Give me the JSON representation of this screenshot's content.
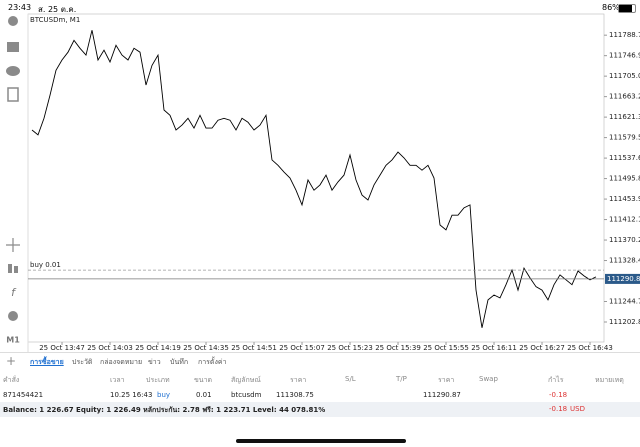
{
  "status_bar": {
    "time": "23:43",
    "date": "ส. 25 ต.ค.",
    "battery": "86%"
  },
  "chart_data": {
    "type": "line",
    "title": "BTCUSDm, M1",
    "timeframe": "M1",
    "color": "#000000",
    "values": [
      111595,
      111585,
      111619,
      111666,
      111717,
      111738,
      111754,
      111778,
      111762,
      111748,
      111799,
      111738,
      111758,
      111734,
      111768,
      111748,
      111738,
      111762,
      111754,
      111687,
      111727,
      111748,
      111636,
      111625,
      111595,
      111605,
      111619,
      111599,
      111625,
      111599,
      111599,
      111615,
      111619,
      111615,
      111595,
      111619,
      111611,
      111595,
      111605,
      111625,
      111534,
      111523,
      111509,
      111497,
      111472,
      111442,
      111493,
      111472,
      111483,
      111503,
      111472,
      111489,
      111503,
      111544,
      111493,
      111462,
      111452,
      111483,
      111503,
      111523,
      111534,
      111550,
      111538,
      111523,
      111523,
      111513,
      111523,
      111497,
      111401,
      111391,
      111421,
      111421,
      111436,
      111442,
      111268,
      111191,
      111248,
      111258,
      111252,
      111279,
      111309,
      111268,
      111313,
      111293,
      111275,
      111268,
      111248,
      111279,
      111299,
      111289,
      111279,
      111307,
      111297,
      111289,
      111295
    ],
    "xlim": [
      -0.67,
      95.33
    ],
    "xticks": [
      {
        "value": 5,
        "label": "25 Oct 13:47"
      },
      {
        "value": 13,
        "label": "25 Oct 14:03"
      },
      {
        "value": 21,
        "label": "25 Oct 14:19"
      },
      {
        "value": 29,
        "label": "25 Oct 14:35"
      },
      {
        "value": 37,
        "label": "25 Oct 14:51"
      },
      {
        "value": 45,
        "label": "25 Oct 15:07"
      },
      {
        "value": 53,
        "label": "25 Oct 15:23"
      },
      {
        "value": 61,
        "label": "25 Oct 15:39"
      },
      {
        "value": 69,
        "label": "25 Oct 15:55"
      },
      {
        "value": 77,
        "label": "25 Oct 16:11"
      },
      {
        "value": 85,
        "label": "25 Oct 16:27"
      },
      {
        "value": 93,
        "label": "25 Oct 16:43"
      }
    ],
    "ylim": [
      111162,
      111832
    ],
    "yticks": [
      {
        "value": 111788.75,
        "label": "111788.75"
      },
      {
        "value": 111746.9,
        "label": "111746.90"
      },
      {
        "value": 111705.05,
        "label": "111705.05"
      },
      {
        "value": 111663.2,
        "label": "111663.20"
      },
      {
        "value": 111621.35,
        "label": "111621.35"
      },
      {
        "value": 111579.5,
        "label": "111579.50"
      },
      {
        "value": 111537.65,
        "label": "111537.65"
      },
      {
        "value": 111495.8,
        "label": "111495.80"
      },
      {
        "value": 111453.95,
        "label": "111453.95"
      },
      {
        "value": 111412.1,
        "label": "111412.10"
      },
      {
        "value": 111370.25,
        "label": "111370.25"
      },
      {
        "value": 111328.4,
        "label": "111328.40"
      },
      {
        "value": 111244.7,
        "label": "111244.70"
      },
      {
        "value": 111202.85,
        "label": "111202.85"
      }
    ],
    "order_line": {
      "label": "buy 0.01",
      "value": 111308.75
    },
    "bid": 111290.87
  },
  "tabs": [
    "การซื้อขาย",
    "ประวัติ",
    "กล่องจดหมาย",
    "ข่าว",
    "บันทึก",
    "การตั้งค่า"
  ],
  "table": {
    "header": [
      "คำสั่ง",
      "เวลา",
      "ประเภท",
      "ขนาด",
      "สัญลักษณ์",
      "ราคา",
      "S/L",
      "T/P",
      "ราคา",
      "Swap",
      "กำไร",
      "หมายเหตุ"
    ],
    "row": {
      "order": "871454421",
      "time": "10.25 16:43",
      "type": "buy",
      "volume": "0.01",
      "symbol": "btcusdm",
      "open_price": "111308.75",
      "price": "111290.87",
      "profit": "-0.18"
    }
  },
  "summary": {
    "text": "Balance: 1 226.67 Equity: 1 226.49 หลักประกัน: 2.78 ฟรี: 1 223.71 Level: 44 078.81%",
    "profit": "-0.18",
    "currency": "USD"
  }
}
